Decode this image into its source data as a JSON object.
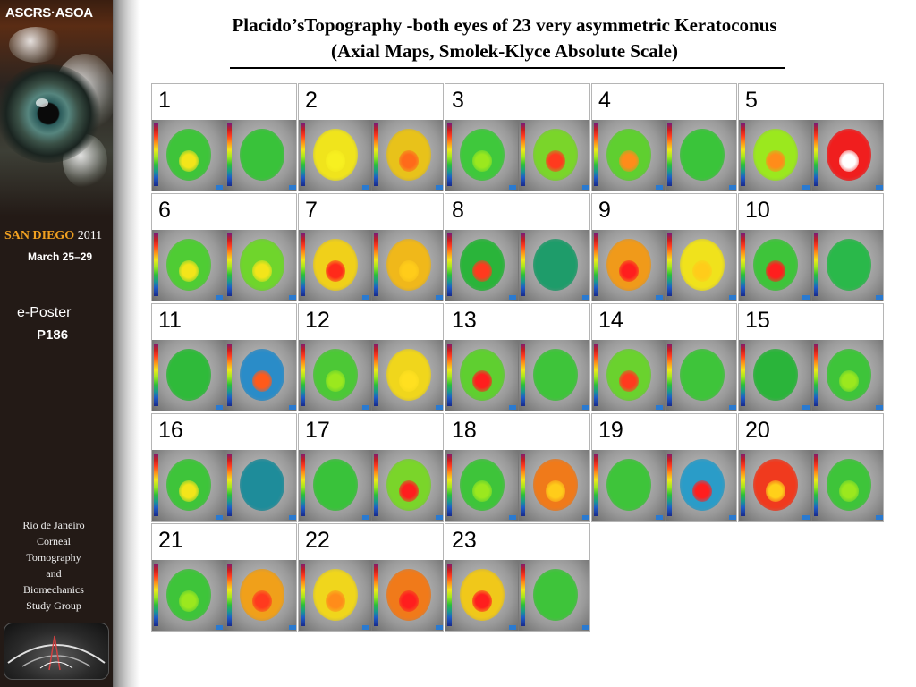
{
  "sidebar": {
    "logo_text": "ASCRS·ASOA",
    "location": {
      "city": "SAN DIEGO",
      "year": "2011"
    },
    "dates": "March 25–29",
    "eposter_label": "e-Poster",
    "poster_id": "P186",
    "group_lines": [
      "Rio de Janeiro",
      "Corneal",
      "Tomography",
      "and",
      "Biomechanics",
      "Study Group"
    ]
  },
  "title": {
    "line1": "Placido’sTopography -both eyes of 23 very asymmetric Keratoconus",
    "line2": "(Axial Maps, Smolek-Klyce Absolute Scale)"
  },
  "cases": [
    {
      "number": "1",
      "eyes": [
        {
          "base": "#3ec43a",
          "hot": "#f3e51a"
        },
        {
          "base": "#39c23a",
          "hot": null
        }
      ]
    },
    {
      "number": "2",
      "eyes": [
        {
          "base": "#f0e41c",
          "hot": "#f7f020"
        },
        {
          "base": "#e8c21a",
          "hot": "#ff6a1a"
        }
      ]
    },
    {
      "number": "3",
      "eyes": [
        {
          "base": "#3fc83c",
          "hot": "#9be81e"
        },
        {
          "base": "#7ad52a",
          "hot": "#ff3a1e"
        }
      ]
    },
    {
      "number": "4",
      "eyes": [
        {
          "base": "#5fcf30",
          "hot": "#ff8c1a"
        },
        {
          "base": "#3ac43a",
          "hot": null
        }
      ]
    },
    {
      "number": "5",
      "eyes": [
        {
          "base": "#9be81e",
          "hot": "#ff8c1a"
        },
        {
          "base": "#f01e1e",
          "hot": "#ffffff"
        }
      ]
    },
    {
      "number": "6",
      "eyes": [
        {
          "base": "#4fcc34",
          "hot": "#f3e51a"
        },
        {
          "base": "#6fd52c",
          "hot": "#f3e51a"
        }
      ]
    },
    {
      "number": "7",
      "eyes": [
        {
          "base": "#f0d01a",
          "hot": "#ff2a1a"
        },
        {
          "base": "#f0b81a",
          "hot": "#ffcc1a"
        }
      ]
    },
    {
      "number": "8",
      "eyes": [
        {
          "base": "#2ab43a",
          "hot": "#ff3a1e"
        },
        {
          "base": "#1e9c6a",
          "hot": null
        }
      ]
    },
    {
      "number": "9",
      "eyes": [
        {
          "base": "#f09a1a",
          "hot": "#ff1e1e"
        },
        {
          "base": "#f0e21c",
          "hot": "#ffcc1a"
        }
      ]
    },
    {
      "number": "10",
      "eyes": [
        {
          "base": "#3ec43a",
          "hot": "#ff1e1e"
        },
        {
          "base": "#2ab84a",
          "hot": null
        }
      ]
    },
    {
      "number": "11",
      "eyes": [
        {
          "base": "#2fba3a",
          "hot": null
        },
        {
          "base": "#2a8cc8",
          "hot": "#ff5a1a"
        }
      ]
    },
    {
      "number": "12",
      "eyes": [
        {
          "base": "#4cc836",
          "hot": "#9be81e"
        },
        {
          "base": "#f0d61c",
          "hot": "#ffe020"
        }
      ]
    },
    {
      "number": "13",
      "eyes": [
        {
          "base": "#5fcf30",
          "hot": "#ff1e1e"
        },
        {
          "base": "#3ec43a",
          "hot": null
        }
      ]
    },
    {
      "number": "14",
      "eyes": [
        {
          "base": "#6ad22e",
          "hot": "#ff3a1e"
        },
        {
          "base": "#3ec43a",
          "hot": null
        }
      ]
    },
    {
      "number": "15",
      "eyes": [
        {
          "base": "#2ab43a",
          "hot": null
        },
        {
          "base": "#3ec43a",
          "hot": "#9be81e"
        }
      ]
    },
    {
      "number": "16",
      "eyes": [
        {
          "base": "#3ec43a",
          "hot": "#f3e51a"
        },
        {
          "base": "#1e8c9a",
          "hot": null
        }
      ]
    },
    {
      "number": "17",
      "eyes": [
        {
          "base": "#39c23a",
          "hot": null
        },
        {
          "base": "#7ad52a",
          "hot": "#ff1e1e"
        }
      ]
    },
    {
      "number": "18",
      "eyes": [
        {
          "base": "#3ec43a",
          "hot": "#9be81e"
        },
        {
          "base": "#f07a1a",
          "hot": "#ffcc1a"
        }
      ]
    },
    {
      "number": "19",
      "eyes": [
        {
          "base": "#3ec43a",
          "hot": null
        },
        {
          "base": "#2a9cc8",
          "hot": "#ff1e1e"
        }
      ]
    },
    {
      "number": "20",
      "eyes": [
        {
          "base": "#f03a1e",
          "hot": "#ffd01a"
        },
        {
          "base": "#3ec43a",
          "hot": "#9be81e"
        }
      ]
    },
    {
      "number": "21",
      "eyes": [
        {
          "base": "#3ec43a",
          "hot": "#9be81e"
        },
        {
          "base": "#f0a01a",
          "hot": "#ff3a1e"
        }
      ]
    },
    {
      "number": "22",
      "eyes": [
        {
          "base": "#f0d61c",
          "hot": "#ff8c1a"
        },
        {
          "base": "#f07a1a",
          "hot": "#ff1e1e"
        }
      ]
    },
    {
      "number": "23",
      "eyes": [
        {
          "base": "#f0c81a",
          "hot": "#ff1e1e"
        },
        {
          "base": "#3ec43a",
          "hot": null
        }
      ]
    }
  ]
}
